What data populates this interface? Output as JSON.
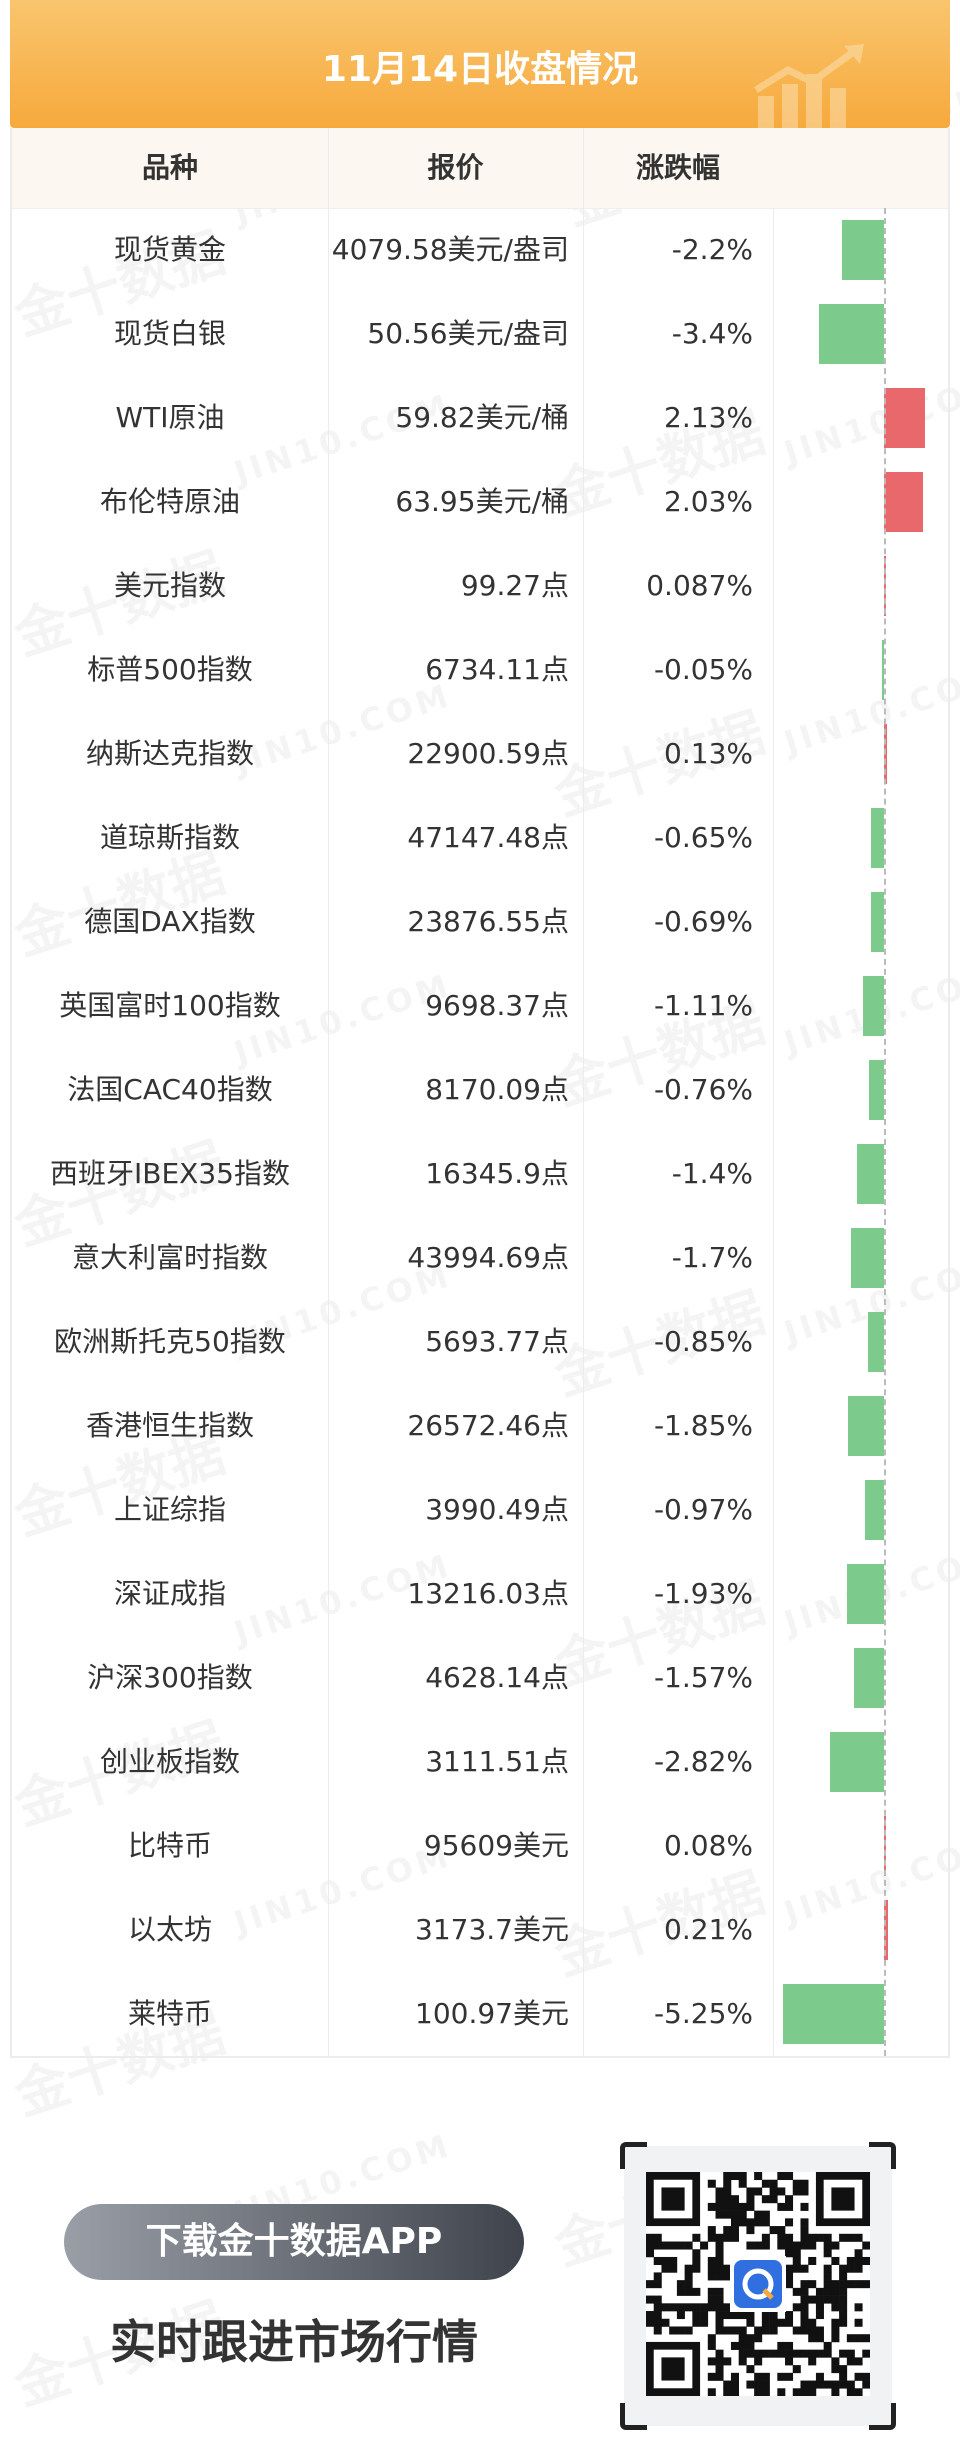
{
  "header": {
    "title": "11月14日收盘情况"
  },
  "table": {
    "columns": [
      "品种",
      "报价",
      "涨跌幅"
    ]
  },
  "chart_data": {
    "type": "table",
    "columns": [
      "品种",
      "报价",
      "涨跌幅"
    ],
    "rows": [
      {
        "name": "现货黄金",
        "price": "4079.58美元/盎司",
        "change": "-2.2%",
        "value": -2.2
      },
      {
        "name": "现货白银",
        "price": "50.56美元/盎司",
        "change": "-3.4%",
        "value": -3.4
      },
      {
        "name": "WTI原油",
        "price": "59.82美元/桶",
        "change": "2.13%",
        "value": 2.13
      },
      {
        "name": "布伦特原油",
        "price": "63.95美元/桶",
        "change": "2.03%",
        "value": 2.03
      },
      {
        "name": "美元指数",
        "price": "99.27点",
        "change": "0.087%",
        "value": 0.087
      },
      {
        "name": "标普500指数",
        "price": "6734.11点",
        "change": "-0.05%",
        "value": -0.05
      },
      {
        "name": "纳斯达克指数",
        "price": "22900.59点",
        "change": "0.13%",
        "value": 0.13
      },
      {
        "name": "道琼斯指数",
        "price": "47147.48点",
        "change": "-0.65%",
        "value": -0.65
      },
      {
        "name": "德国DAX指数",
        "price": "23876.55点",
        "change": "-0.69%",
        "value": -0.69
      },
      {
        "name": "英国富时100指数",
        "price": "9698.37点",
        "change": "-1.11%",
        "value": -1.11
      },
      {
        "name": "法国CAC40指数",
        "price": "8170.09点",
        "change": "-0.76%",
        "value": -0.76
      },
      {
        "name": "西班牙IBEX35指数",
        "price": "16345.9点",
        "change": "-1.4%",
        "value": -1.4
      },
      {
        "name": "意大利富时指数",
        "price": "43994.69点",
        "change": "-1.7%",
        "value": -1.7
      },
      {
        "name": "欧洲斯托克50指数",
        "price": "5693.77点",
        "change": "-0.85%",
        "value": -0.85
      },
      {
        "name": "香港恒生指数",
        "price": "26572.46点",
        "change": "-1.85%",
        "value": -1.85
      },
      {
        "name": "上证综指",
        "price": "3990.49点",
        "change": "-0.97%",
        "value": -0.97
      },
      {
        "name": "深证成指",
        "price": "13216.03点",
        "change": "-1.93%",
        "value": -1.93
      },
      {
        "name": "沪深300指数",
        "price": "4628.14点",
        "change": "-1.57%",
        "value": -1.57
      },
      {
        "name": "创业板指数",
        "price": "3111.51点",
        "change": "-2.82%",
        "value": -2.82
      },
      {
        "name": "比特币",
        "price": "95609美元",
        "change": "0.08%",
        "value": 0.08
      },
      {
        "name": "以太坊",
        "price": "3173.7美元",
        "change": "0.21%",
        "value": 0.21
      },
      {
        "name": "莱特币",
        "price": "100.97美元",
        "change": "-5.25%",
        "value": -5.25
      }
    ],
    "colors": {
      "up": "#e8686b",
      "down": "#7dcb8c"
    }
  },
  "footer": {
    "download_label": "下载金十数据APP",
    "slogan": "实时跟进市场行情"
  },
  "watermark": {
    "cn": "金十数据",
    "en": "JIN10.COM"
  },
  "icons": {
    "header": "trend-up-icon",
    "qr": "qr-code-icon",
    "qr_logo": "jin10-logo-icon"
  }
}
